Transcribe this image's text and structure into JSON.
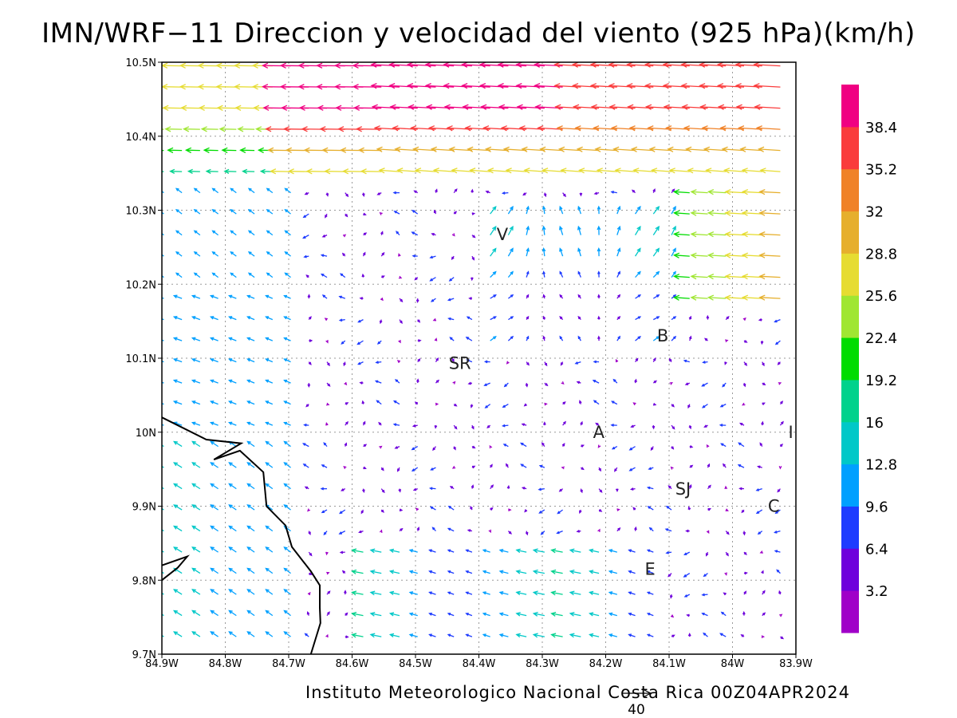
{
  "title": "IMN/WRF−11 Direccion y velocidad del viento (925 hPa)(km/h)",
  "footer": "Instituto Meteorologico Nacional Costa Rica 00Z04APR2024",
  "reference_vector": {
    "label": "40",
    "speed": 40
  },
  "chart_data": {
    "type": "vector-field",
    "domain": {
      "lon": [
        -84.9,
        -83.9
      ],
      "lat": [
        9.7,
        10.5
      ]
    },
    "grid": true,
    "x_ticks": [
      "84.9W",
      "84.8W",
      "84.7W",
      "84.6W",
      "84.5W",
      "84.4W",
      "84.3W",
      "84.2W",
      "84.1W",
      "84W",
      "83.9W"
    ],
    "y_ticks": [
      "10.5N",
      "10.4N",
      "10.3N",
      "10.2N",
      "10.1N",
      "10N",
      "9.9N",
      "9.8N",
      "9.7N"
    ],
    "colorbar": {
      "labels": [
        "3.2",
        "6.4",
        "9.6",
        "12.8",
        "16",
        "19.2",
        "22.4",
        "25.6",
        "28.8",
        "32",
        "35.2",
        "38.4"
      ],
      "colors": [
        "#a000c8",
        "#6e00dc",
        "#1e3cff",
        "#00a0ff",
        "#00c8c8",
        "#00d28c",
        "#00dc00",
        "#a0e632",
        "#e6dc32",
        "#e6af2d",
        "#f08228",
        "#fa3c3c",
        "#f00082"
      ]
    },
    "places": [
      {
        "label": "V",
        "lon": -84.363,
        "lat": 10.267
      },
      {
        "label": "SR",
        "lon": -84.43,
        "lat": 10.093
      },
      {
        "label": "B",
        "lon": -84.11,
        "lat": 10.13
      },
      {
        "label": "A",
        "lon": -84.211,
        "lat": 10.0
      },
      {
        "label": "I",
        "lon": -83.908,
        "lat": 10.0
      },
      {
        "label": "SJ",
        "lon": -84.078,
        "lat": 9.923
      },
      {
        "label": "C",
        "lon": -83.935,
        "lat": 9.9
      },
      {
        "label": "E",
        "lon": -84.13,
        "lat": 9.815
      }
    ],
    "coastline": [
      [
        -84.9,
        10.02
      ],
      [
        -84.83,
        9.99
      ],
      [
        -84.775,
        9.985
      ],
      [
        -84.818,
        9.963
      ],
      [
        -84.777,
        9.975
      ],
      [
        -84.74,
        9.946
      ],
      [
        -84.735,
        9.9
      ],
      [
        -84.705,
        9.874
      ],
      [
        -84.695,
        9.845
      ],
      [
        -84.665,
        9.812
      ],
      [
        -84.651,
        9.793
      ],
      [
        -84.651,
        9.763
      ],
      [
        -84.65,
        9.742
      ],
      [
        -84.665,
        9.7
      ]
    ],
    "coastline_small": [
      [
        -84.9,
        9.82
      ],
      [
        -84.86,
        9.832
      ],
      [
        -84.875,
        9.817
      ],
      [
        -84.9,
        9.8
      ]
    ]
  }
}
